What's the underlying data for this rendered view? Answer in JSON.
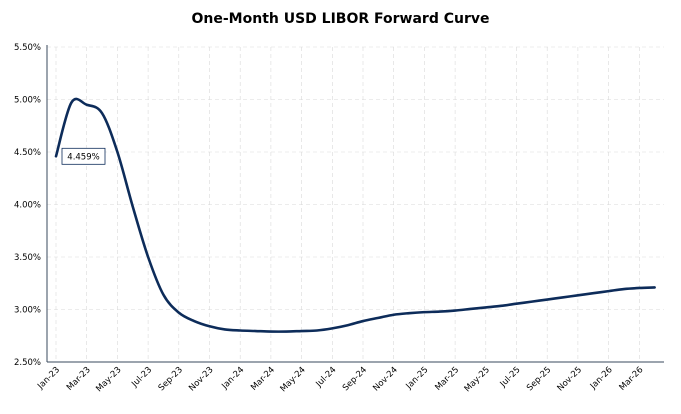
{
  "chart_data": {
    "type": "line",
    "title": "One-Month USD LIBOR Forward Curve",
    "xlabel": "",
    "ylabel": "",
    "ylim": [
      2.5,
      5.5
    ],
    "yticks": [
      "2.50%",
      "3.00%",
      "3.50%",
      "4.00%",
      "4.50%",
      "5.00%",
      "5.50%"
    ],
    "xticks": [
      "Jan-23",
      "Mar-23",
      "May-23",
      "Jul-23",
      "Sep-23",
      "Nov-23",
      "Jan-24",
      "Mar-24",
      "May-24",
      "Jul-24",
      "Sep-24",
      "Nov-24",
      "Jan-25",
      "Mar-25",
      "May-25",
      "Jul-25",
      "Sep-25",
      "Nov-25",
      "Jan-26",
      "Mar-26"
    ],
    "grid": true,
    "line_color": "#0d2c5a",
    "annotation": {
      "text": "4.459%",
      "x": "Jan-23",
      "y": 4.459
    },
    "series": [
      {
        "x": [
          "Jan-23",
          "Feb-23",
          "Mar-23",
          "Apr-23",
          "May-23",
          "Jun-23",
          "Jul-23",
          "Aug-23",
          "Sep-23",
          "Oct-23",
          "Nov-23",
          "Dec-23",
          "Jan-24",
          "Feb-24",
          "Mar-24",
          "Apr-24",
          "May-24",
          "Jun-24",
          "Jul-24",
          "Aug-24",
          "Sep-24",
          "Oct-24",
          "Nov-24",
          "Dec-24",
          "Jan-25",
          "Feb-25",
          "Mar-25",
          "Apr-25",
          "May-25",
          "Jun-25",
          "Jul-25",
          "Aug-25",
          "Sep-25",
          "Oct-25",
          "Nov-25",
          "Dec-25",
          "Jan-26",
          "Feb-26",
          "Mar-26",
          "Apr-26"
        ],
        "values": [
          4.459,
          4.97,
          4.95,
          4.87,
          4.5,
          3.98,
          3.5,
          3.14,
          2.97,
          2.89,
          2.84,
          2.81,
          2.8,
          2.795,
          2.79,
          2.79,
          2.795,
          2.8,
          2.82,
          2.85,
          2.89,
          2.92,
          2.95,
          2.965,
          2.975,
          2.98,
          2.99,
          3.005,
          3.02,
          3.035,
          3.055,
          3.075,
          3.095,
          3.115,
          3.135,
          3.155,
          3.175,
          3.195,
          3.205,
          3.21
        ]
      }
    ]
  }
}
